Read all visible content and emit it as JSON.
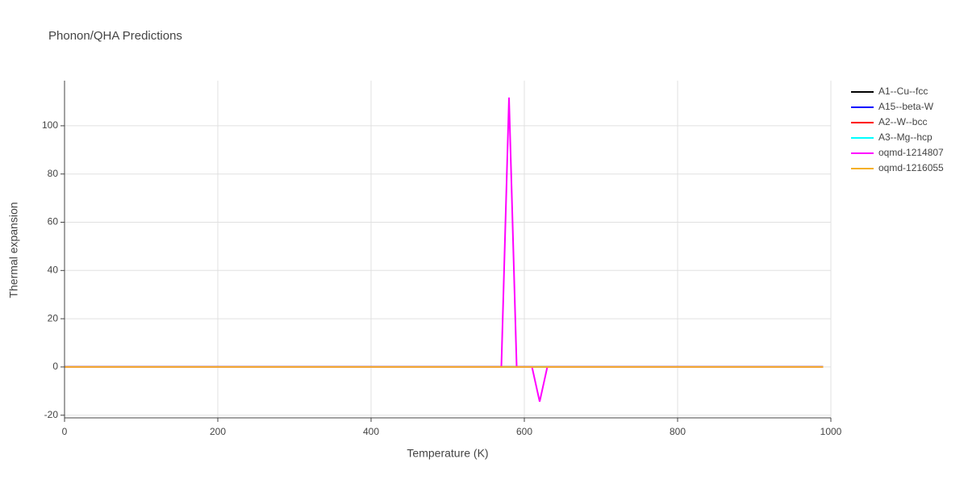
{
  "chart_data": {
    "type": "line",
    "title": "Phonon/QHA Predictions",
    "x_label": "Temperature (K)",
    "y_label": "Thermal expansion",
    "xlim": [
      0,
      1000
    ],
    "xticks": [
      0,
      200,
      400,
      600,
      800,
      1000
    ],
    "ylim": [
      -21.1,
      118.7
    ],
    "yticks": [
      -20,
      0,
      20,
      40,
      60,
      80,
      100
    ],
    "grid": true,
    "legend": "right",
    "series": [
      {
        "name": "A1--Cu--fcc",
        "color": "#000000",
        "x": [
          0,
          990
        ],
        "values": [
          0,
          0
        ]
      },
      {
        "name": "A15--beta-W",
        "color": "#0000ff",
        "x": [
          0,
          990
        ],
        "values": [
          0,
          0
        ]
      },
      {
        "name": "A2--W--bcc",
        "color": "#ff0000",
        "x": [
          0,
          990
        ],
        "values": [
          0,
          0
        ]
      },
      {
        "name": "A3--Mg--hcp",
        "color": "#00ffff",
        "x": [
          0,
          990
        ],
        "values": [
          0,
          0
        ]
      },
      {
        "name": "oqmd-1214807",
        "color": "#ff00ff",
        "x": [
          0,
          570,
          580,
          590,
          600,
          610,
          620,
          630,
          990
        ],
        "values": [
          0,
          0,
          111.7,
          0,
          0,
          0,
          -14.4,
          0,
          0
        ]
      },
      {
        "name": "oqmd-1216055",
        "color": "#f5b027",
        "x": [
          0,
          990
        ],
        "values": [
          0,
          0
        ]
      }
    ]
  }
}
